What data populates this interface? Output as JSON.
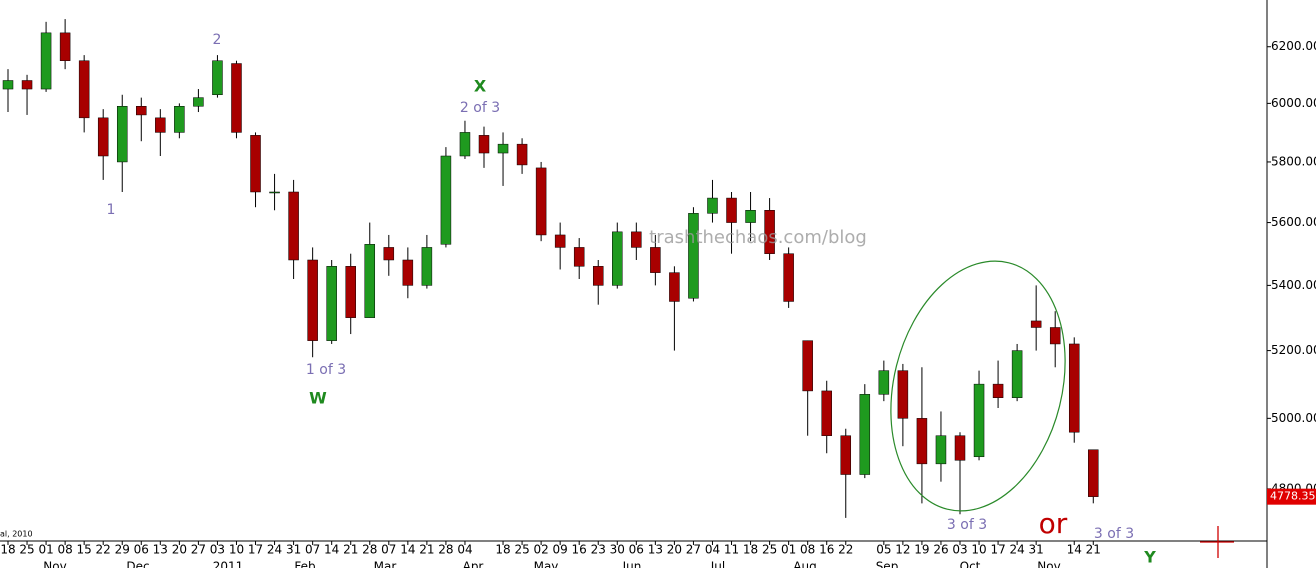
{
  "chart_data": {
    "type": "candlestick",
    "log_scale": true,
    "up_color": "#1f9a1f",
    "down_color": "#a80000",
    "categories": [
      "18",
      "25",
      "01",
      "08",
      "15",
      "22",
      "29",
      "06",
      "13",
      "20",
      "27",
      "03",
      "10",
      "17",
      "24",
      "31",
      "07",
      "14",
      "21",
      "28",
      "07",
      "14",
      "21",
      "28",
      "04",
      null,
      "18",
      "25",
      "02",
      "09",
      "16",
      "23",
      "30",
      "06",
      "13",
      "20",
      "27",
      "04",
      "11",
      "18",
      "25",
      "01",
      "08",
      "16",
      "22",
      null,
      "05",
      "12",
      "19",
      "26",
      "03",
      "10",
      "17",
      "24",
      "31",
      null,
      "14",
      "21"
    ],
    "months": [
      "Nov",
      "Dec",
      "2011",
      "Feb",
      "Mar",
      "Apr",
      "May",
      "Jun",
      "Jul",
      "Aug",
      "Sep",
      "Oct",
      "Nov"
    ],
    "open": [
      6050,
      6080,
      6050,
      6250,
      6150,
      5950,
      5800,
      5990,
      5950,
      5900,
      5990,
      6030,
      6140,
      5890,
      5700,
      5700,
      5480,
      5230,
      5460,
      5300,
      5520,
      5480,
      5400,
      5530,
      5820,
      5890,
      5830,
      5860,
      5780,
      5560,
      5520,
      5460,
      5400,
      5570,
      5520,
      5440,
      5360,
      5630,
      5680,
      5600,
      5640,
      5500,
      5230,
      5080,
      4950,
      4840,
      5070,
      5140,
      5000,
      4870,
      4950,
      4890,
      5100,
      5060,
      5290,
      5270,
      5220,
      4910
    ],
    "high": [
      6120,
      6100,
      6290,
      6300,
      6170,
      5980,
      6030,
      6020,
      5980,
      6000,
      6050,
      6170,
      6150,
      5900,
      5760,
      5740,
      5520,
      5480,
      5500,
      5600,
      5560,
      5520,
      5560,
      5850,
      5940,
      5920,
      5900,
      5880,
      5800,
      5600,
      5550,
      5480,
      5600,
      5600,
      5560,
      5460,
      5650,
      5740,
      5700,
      5700,
      5680,
      5520,
      5230,
      5110,
      4970,
      5100,
      5170,
      5160,
      5150,
      5020,
      4960,
      5140,
      5170,
      5220,
      5400,
      5320,
      5240,
      4910
    ],
    "low": [
      5970,
      5960,
      6040,
      6120,
      5900,
      5740,
      5700,
      5870,
      5820,
      5880,
      5970,
      6020,
      5880,
      5650,
      5640,
      5420,
      5180,
      5220,
      5250,
      5300,
      5430,
      5360,
      5390,
      5520,
      5810,
      5780,
      5720,
      5760,
      5540,
      5450,
      5420,
      5340,
      5390,
      5480,
      5400,
      5200,
      5350,
      5600,
      5500,
      5540,
      5480,
      5330,
      4950,
      4900,
      4720,
      4830,
      5050,
      4920,
      4760,
      4820,
      4730,
      4880,
      5030,
      5050,
      5200,
      5150,
      4930,
      4760
    ],
    "close": [
      6080,
      6050,
      6250,
      6150,
      5950,
      5820,
      5990,
      5960,
      5900,
      5990,
      6020,
      6150,
      5900,
      5700,
      5700,
      5480,
      5230,
      5460,
      5300,
      5530,
      5480,
      5400,
      5520,
      5820,
      5900,
      5830,
      5860,
      5790,
      5560,
      5520,
      5460,
      5400,
      5570,
      5520,
      5440,
      5350,
      5630,
      5680,
      5600,
      5640,
      5500,
      5350,
      5080,
      4950,
      4840,
      5070,
      5140,
      5000,
      4870,
      4950,
      4880,
      5100,
      5060,
      5200,
      5270,
      5220,
      4960,
      4778.35
    ],
    "ylim": [
      4660,
      6370
    ],
    "yticks": [
      {
        "value": 4800,
        "label": "4800.00"
      },
      {
        "value": 5000,
        "label": "5000.00"
      },
      {
        "value": 5200,
        "label": "5200.00"
      },
      {
        "value": 5400,
        "label": "5400.00"
      },
      {
        "value": 5600,
        "label": "5600.00"
      },
      {
        "value": 5800,
        "label": "5800.00"
      },
      {
        "value": 6000,
        "label": "6000.00"
      },
      {
        "value": 6200,
        "label": "6200.00"
      }
    ],
    "annotations": [
      "1",
      "2",
      "1 of 3",
      "W",
      "X",
      "2 of 3",
      "3 of 3",
      "or",
      "3 of 3",
      "Y"
    ],
    "watermark": "trashthechaos.com/blog",
    "source_note": "al, 2010"
  }
}
